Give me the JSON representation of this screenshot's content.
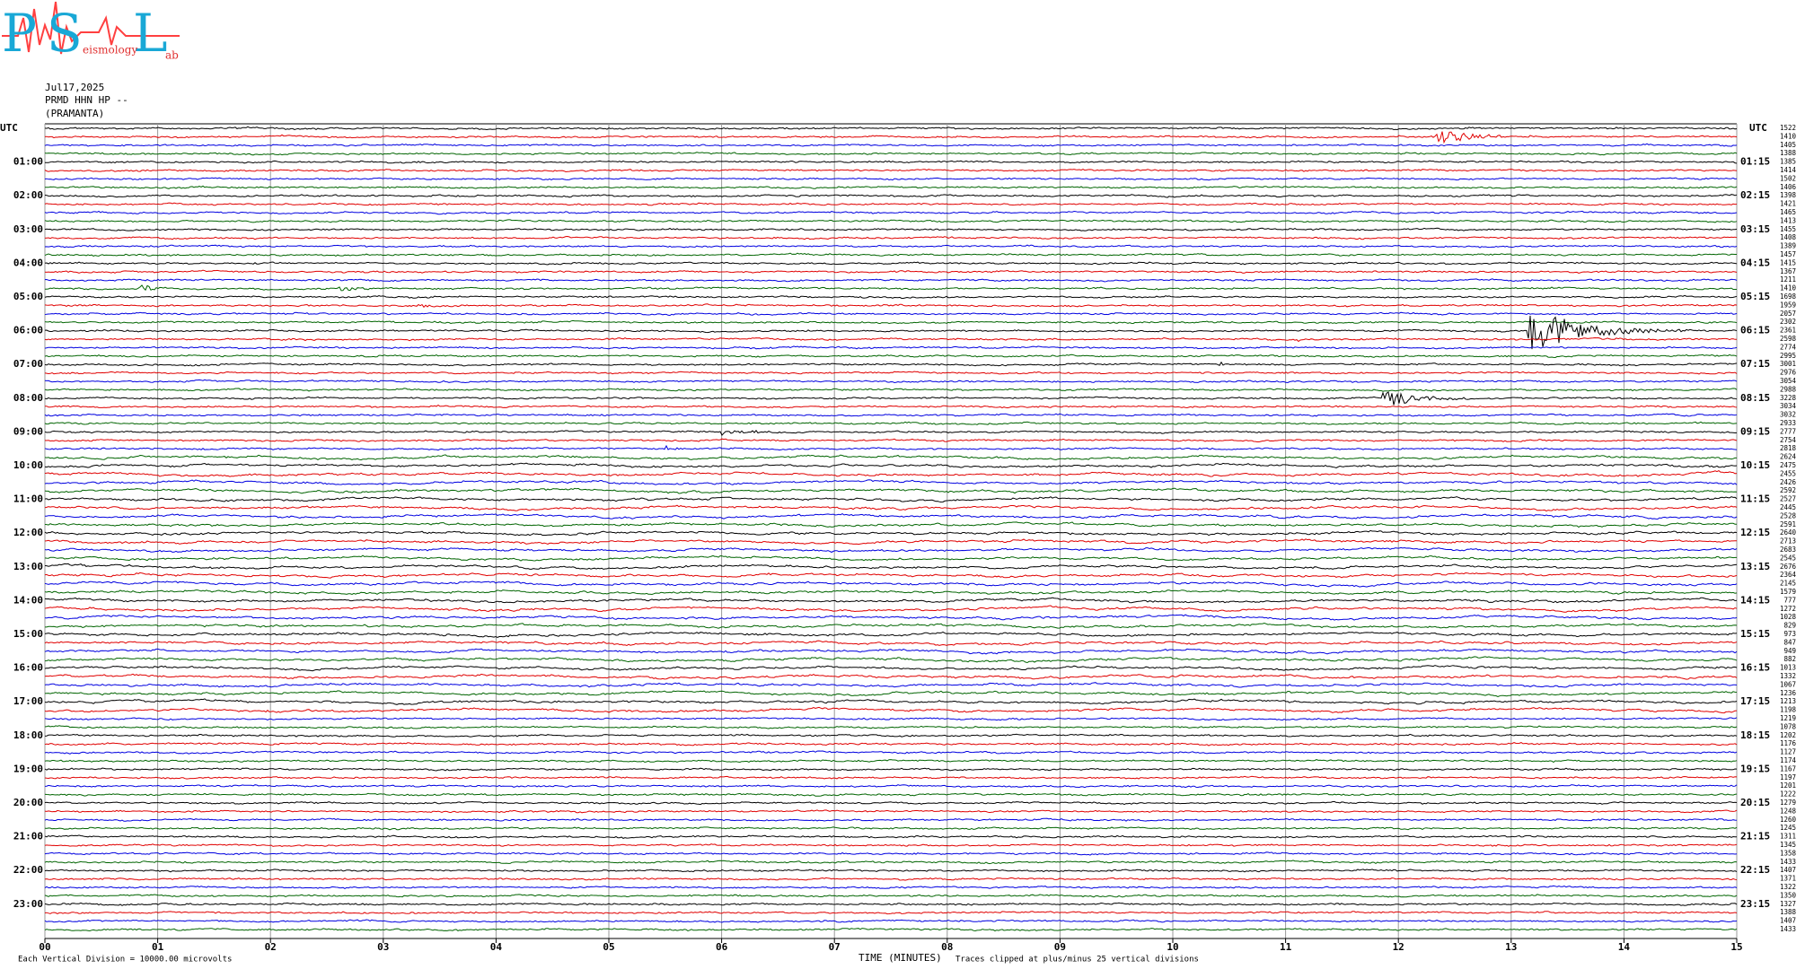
{
  "logo": {
    "letters": [
      "P",
      "S",
      "L"
    ],
    "small": [
      "eismology",
      "ab"
    ]
  },
  "header": {
    "date": "Jul17,2025",
    "station": "PRMD HHN HP --",
    "place": "(PRAMANTA)"
  },
  "chart_data": {
    "type": "helicorder",
    "xlim": [
      0,
      15
    ],
    "xticks": [
      {
        "value": 0,
        "label": "00"
      },
      {
        "value": 1,
        "label": "01"
      },
      {
        "value": 2,
        "label": "02"
      },
      {
        "value": 3,
        "label": "03"
      },
      {
        "value": 4,
        "label": "04"
      },
      {
        "value": 5,
        "label": "05"
      },
      {
        "value": 6,
        "label": "06"
      },
      {
        "value": 7,
        "label": "07"
      },
      {
        "value": 8,
        "label": "08"
      },
      {
        "value": 9,
        "label": "09"
      },
      {
        "value": 10,
        "label": "10"
      },
      {
        "value": 11,
        "label": "11"
      },
      {
        "value": 12,
        "label": "12"
      },
      {
        "value": 13,
        "label": "13"
      },
      {
        "value": 14,
        "label": "14"
      },
      {
        "value": 15,
        "label": "15"
      }
    ],
    "xlabel": "TIME (MINUTES)",
    "grid": true,
    "trace_colors": [
      "#000000",
      "#e00000",
      "#0000e0",
      "#006400"
    ],
    "row_labels_left": [
      "UTC",
      "01:00",
      "02:00",
      "03:00",
      "04:00",
      "05:00",
      "06:00",
      "07:00",
      "08:00",
      "09:00",
      "10:00",
      "11:00",
      "12:00",
      "13:00",
      "14:00",
      "15:00",
      "16:00",
      "17:00",
      "18:00",
      "19:00",
      "20:00",
      "21:00",
      "22:00",
      "23:00"
    ],
    "row_labels_right": [
      "UTC",
      "01:15",
      "02:15",
      "03:15",
      "04:15",
      "05:15",
      "06:15",
      "07:15",
      "08:15",
      "09:15",
      "10:15",
      "11:15",
      "12:15",
      "13:15",
      "14:15",
      "15:15",
      "16:15",
      "17:15",
      "18:15",
      "19:15",
      "20:15",
      "21:15",
      "22:15",
      "23:15"
    ],
    "row_values": [
      1522,
      1410,
      1405,
      1388,
      1385,
      1414,
      1502,
      1406,
      1398,
      1421,
      1465,
      1413,
      1455,
      1408,
      1389,
      1457,
      1415,
      1367,
      1211,
      1410,
      1698,
      1959,
      2057,
      2302,
      2361,
      2598,
      2774,
      2995,
      3001,
      2976,
      3054,
      2988,
      3228,
      3034,
      3032,
      2933,
      2777,
      2754,
      2818,
      2624,
      2475,
      2455,
      2426,
      2592,
      2527,
      2445,
      2528,
      2591,
      2640,
      2713,
      2683,
      2545,
      2676,
      2364,
      2145,
      1579,
      777,
      1272,
      1028,
      829,
      973,
      847,
      949,
      882,
      1013,
      1332,
      1067,
      1236,
      1213,
      1198,
      1219,
      1078,
      1202,
      1176,
      1127,
      1174,
      1167,
      1197,
      1201,
      1222,
      1279,
      1248,
      1260,
      1245,
      1311,
      1345,
      1358,
      1433,
      1407,
      1371,
      1322,
      1350,
      1327,
      1388,
      1407,
      1433
    ],
    "footer_left": "Each Vertical Division = 10000.00 microvolts",
    "footer_right": "Traces clipped at plus/minus 25 vertical divisions"
  }
}
